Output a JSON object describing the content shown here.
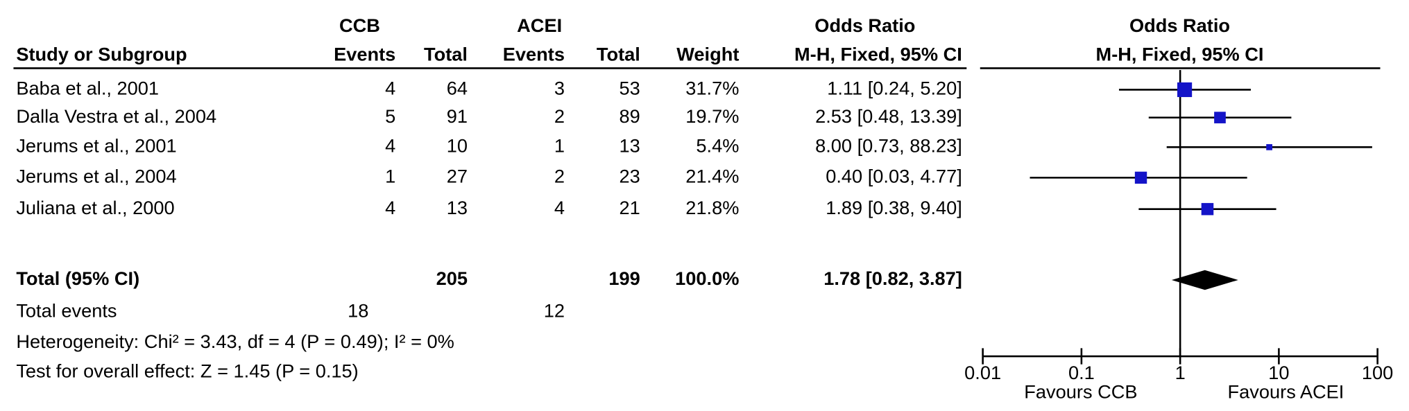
{
  "chart_data": {
    "type": "forest",
    "group_headers": [
      "CCB",
      "ACEI",
      "Odds Ratio",
      "Odds Ratio"
    ],
    "column_headers": [
      "Study or Subgroup",
      "Events",
      "Total",
      "Events",
      "Total",
      "Weight",
      "M-H, Fixed, 95% CI",
      "M-H, Fixed, 95% CI"
    ],
    "studies": [
      {
        "name": "Baba et al., 2001",
        "ccb_events": 4,
        "ccb_total": 64,
        "acei_events": 3,
        "acei_total": 53,
        "weight": 31.7,
        "weight_label": "31.7%",
        "or": 1.11,
        "ci_lower": 0.24,
        "ci_upper": 5.2,
        "ci_label": "1.11 [0.24, 5.20]"
      },
      {
        "name": "Dalla Vestra et al., 2004",
        "ccb_events": 5,
        "ccb_total": 91,
        "acei_events": 2,
        "acei_total": 89,
        "weight": 19.7,
        "weight_label": "19.7%",
        "or": 2.53,
        "ci_lower": 0.48,
        "ci_upper": 13.39,
        "ci_label": "2.53 [0.48, 13.39]"
      },
      {
        "name": "Jerums et al., 2001",
        "ccb_events": 4,
        "ccb_total": 10,
        "acei_events": 1,
        "acei_total": 13,
        "weight": 5.4,
        "weight_label": "5.4%",
        "or": 8.0,
        "ci_lower": 0.73,
        "ci_upper": 88.23,
        "ci_label": "8.00 [0.73, 88.23]"
      },
      {
        "name": "Jerums et al., 2004",
        "ccb_events": 1,
        "ccb_total": 27,
        "acei_events": 2,
        "acei_total": 23,
        "weight": 21.4,
        "weight_label": "21.4%",
        "or": 0.4,
        "ci_lower": 0.03,
        "ci_upper": 4.77,
        "ci_label": "0.40 [0.03, 4.77]"
      },
      {
        "name": "Juliana et al., 2000",
        "ccb_events": 4,
        "ccb_total": 13,
        "acei_events": 4,
        "acei_total": 21,
        "weight": 21.8,
        "weight_label": "21.8%",
        "or": 1.89,
        "ci_lower": 0.38,
        "ci_upper": 9.4,
        "ci_label": "1.89 [0.38, 9.40]"
      }
    ],
    "total": {
      "name": "Total (95% CI)",
      "ccb_total": 205,
      "acei_total": 199,
      "weight": 100.0,
      "weight_label": "100.0%",
      "or": 1.78,
      "ci_lower": 0.82,
      "ci_upper": 3.87,
      "ci_label": "1.78 [0.82, 3.87]"
    },
    "total_events": {
      "name": "Total events",
      "ccb": 18,
      "acei": 12
    },
    "heterogeneity": "Heterogeneity: Chi² = 3.43, df = 4 (P = 0.49); I² = 0%",
    "overall_effect": "Test for overall effect: Z = 1.45 (P = 0.15)",
    "xlim": [
      0.01,
      100
    ],
    "xticks": [
      0.01,
      0.1,
      1,
      10,
      100
    ],
    "log_scale": true,
    "favours_left": "Favours CCB",
    "favours_right": "Favours ACEI",
    "marker_color": "#1414c8",
    "diamond_color": "#000000"
  }
}
